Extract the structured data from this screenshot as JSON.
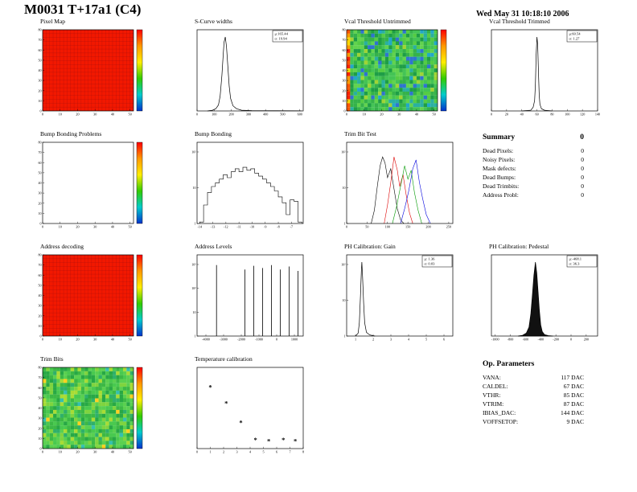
{
  "header": {
    "title": "M0031 T+17a1 (C4)",
    "date": "Wed May 31 10:18:10 2006"
  },
  "summary": {
    "title": "Summary",
    "total": "0",
    "rows": [
      {
        "label": "Dead Pixels:",
        "value": "0"
      },
      {
        "label": "Noisy Pixels:",
        "value": "0"
      },
      {
        "label": "Mask defects:",
        "value": "0"
      },
      {
        "label": "Dead Bumps:",
        "value": "0"
      },
      {
        "label": "Dead Trimbits:",
        "value": "0"
      },
      {
        "label": "Address Probl:",
        "value": "0"
      }
    ]
  },
  "op_parameters": {
    "title": "Op. Parameters",
    "rows": [
      {
        "label": "VANA:",
        "value": "117 DAC"
      },
      {
        "label": "CALDEL:",
        "value": "67 DAC"
      },
      {
        "label": "VTHR:",
        "value": "85 DAC"
      },
      {
        "label": "VTRIM:",
        "value": "87 DAC"
      },
      {
        "label": "IBIAS_DAC:",
        "value": "144 DAC"
      },
      {
        "label": "VOFFSETOP:",
        "value": "9 DAC"
      }
    ]
  },
  "chart_data": [
    {
      "name": "pixel_map",
      "title": "Pixel Map",
      "type": "heatmap",
      "style": "solid",
      "base": "#f21800",
      "grid_color": "#a01010",
      "xlim": [
        0,
        52
      ],
      "xticks": [
        0,
        10,
        20,
        30,
        40,
        50
      ],
      "ylim": [
        0,
        80
      ],
      "yticks": [
        0,
        10,
        20,
        30,
        40,
        50,
        60,
        70,
        80
      ],
      "colorbar": true
    },
    {
      "name": "scurve_widths",
      "title": "S-Curve widths",
      "type": "line",
      "variant": "curve",
      "xlim": [
        0,
        620
      ],
      "xticks": [
        0,
        100,
        200,
        300,
        400,
        500,
        600
      ],
      "stats": {
        "mu": "μ:165.44",
        "sigma": "σ: 19.94"
      },
      "points": [
        [
          60,
          0
        ],
        [
          90,
          0.01
        ],
        [
          110,
          0.03
        ],
        [
          125,
          0.08
        ],
        [
          135,
          0.2
        ],
        [
          145,
          0.48
        ],
        [
          152,
          0.74
        ],
        [
          158,
          0.93
        ],
        [
          165,
          1.0
        ],
        [
          172,
          0.87
        ],
        [
          180,
          0.6
        ],
        [
          188,
          0.33
        ],
        [
          196,
          0.17
        ],
        [
          210,
          0.07
        ],
        [
          230,
          0.03
        ],
        [
          260,
          0.01
        ],
        [
          320,
          0.004
        ],
        [
          610,
          0.002
        ]
      ]
    },
    {
      "name": "vcal_threshold_untrimmed",
      "title": "Vcal Threshold Untrimmed",
      "type": "heatmap",
      "style": "noise",
      "seed": 7,
      "palette": [
        [
          "#35b24a",
          5
        ],
        [
          "#44c455",
          5
        ],
        [
          "#2ab0a0",
          2
        ],
        [
          "#55cc44",
          3
        ],
        [
          "#22a8c8",
          1.5
        ],
        [
          "#2f74d0",
          1
        ],
        [
          "#9fd435",
          1.5
        ],
        [
          "#1e9e46",
          3
        ],
        [
          "#62d34e",
          3
        ]
      ],
      "left_strip": [
        "#ff2200",
        "#ff9900",
        "#ffd500",
        "#ff5500"
      ],
      "xlim": [
        0,
        52
      ],
      "xticks": [
        0,
        10,
        20,
        30,
        40,
        50
      ],
      "ylim": [
        0,
        80
      ],
      "yticks": [
        0,
        10,
        20,
        30,
        40,
        50,
        60,
        70,
        80
      ],
      "colorbar": true
    },
    {
      "name": "vcal_threshold_trimmed",
      "title": "Vcal Threshold Trimmed",
      "type": "line",
      "variant": "curve",
      "xlim": [
        0,
        140
      ],
      "xticks": [
        0,
        20,
        40,
        60,
        80,
        100,
        120,
        140
      ],
      "stats": {
        "mu": "μ:60.54",
        "sigma": "σ: 1.27"
      },
      "points": [
        [
          40,
          0
        ],
        [
          52,
          0.01
        ],
        [
          55,
          0.05
        ],
        [
          57,
          0.14
        ],
        [
          58,
          0.36
        ],
        [
          59,
          0.75
        ],
        [
          60,
          1.0
        ],
        [
          61,
          0.9
        ],
        [
          62,
          0.52
        ],
        [
          63,
          0.22
        ],
        [
          64,
          0.09
        ],
        [
          66,
          0.03
        ],
        [
          70,
          0.01
        ],
        [
          80,
          0
        ]
      ]
    },
    {
      "name": "bump_bonding_problems",
      "title": "Bump Bonding Problems",
      "type": "heatmap",
      "style": "empty",
      "xlim": [
        0,
        52
      ],
      "xticks": [
        0,
        10,
        20,
        30,
        40,
        50
      ],
      "ylim": [
        0,
        80
      ],
      "yticks": [
        0,
        10,
        20,
        30,
        40,
        50,
        60,
        70,
        80
      ],
      "colorbar": true
    },
    {
      "name": "bump_bonding",
      "title": "Bump Bonding",
      "type": "line",
      "variant": "steps",
      "xlim": [
        -14.2,
        -6.1
      ],
      "xticks": [
        -14,
        -13,
        -12,
        -11,
        -10,
        -9,
        -8,
        -7
      ],
      "ylabels": [
        "1",
        "10",
        "10²"
      ],
      "bins": {
        "x0": -14,
        "dx": 0.3,
        "heights": [
          0.02,
          0.25,
          0.42,
          0.5,
          0.55,
          0.6,
          0.66,
          0.62,
          0.7,
          0.74,
          0.7,
          0.76,
          0.72,
          0.74,
          0.68,
          0.64,
          0.6,
          0.55,
          0.5,
          0.44,
          0.36,
          0.28,
          0.12,
          0.32,
          0.3,
          0.02
        ]
      }
    },
    {
      "name": "trim_bit_test",
      "title": "Trim Bit Test",
      "type": "line",
      "variant": "multi",
      "xlim": [
        0,
        260
      ],
      "xticks": [
        0,
        50,
        100,
        150,
        200,
        250
      ],
      "ylabels": [
        "1",
        "10",
        "10²"
      ],
      "series": [
        {
          "color": "#000000",
          "points": [
            [
              60,
              0
            ],
            [
              68,
              0.18
            ],
            [
              75,
              0.5
            ],
            [
              82,
              0.78
            ],
            [
              88,
              0.9
            ],
            [
              94,
              0.82
            ],
            [
              100,
              0.62
            ],
            [
              108,
              0.74
            ],
            [
              115,
              0.5
            ],
            [
              124,
              0.2
            ],
            [
              132,
              0.05
            ],
            [
              140,
              0
            ]
          ]
        },
        {
          "color": "#dd0000",
          "points": [
            [
              92,
              0
            ],
            [
              100,
              0.25
            ],
            [
              108,
              0.55
            ],
            [
              116,
              0.9
            ],
            [
              124,
              0.72
            ],
            [
              130,
              0.5
            ],
            [
              138,
              0.66
            ],
            [
              146,
              0.38
            ],
            [
              154,
              0.14
            ],
            [
              162,
              0
            ]
          ]
        },
        {
          "color": "#009900",
          "points": [
            [
              112,
              0
            ],
            [
              122,
              0.22
            ],
            [
              132,
              0.5
            ],
            [
              142,
              0.78
            ],
            [
              150,
              0.6
            ],
            [
              158,
              0.72
            ],
            [
              166,
              0.42
            ],
            [
              175,
              0.18
            ],
            [
              184,
              0
            ]
          ]
        },
        {
          "color": "#0000dd",
          "points": [
            [
              132,
              0
            ],
            [
              142,
              0.2
            ],
            [
              152,
              0.44
            ],
            [
              162,
              0.74
            ],
            [
              170,
              0.86
            ],
            [
              178,
              0.56
            ],
            [
              186,
              0.34
            ],
            [
              195,
              0.12
            ],
            [
              205,
              0
            ]
          ]
        }
      ]
    },
    {
      "name": "address_decoding",
      "title": "Address decoding",
      "type": "heatmap",
      "style": "solid",
      "base": "#f21800",
      "grid_color": "#a01010",
      "xlim": [
        0,
        52
      ],
      "xticks": [
        0,
        10,
        20,
        30,
        40,
        50
      ],
      "ylim": [
        0,
        80
      ],
      "yticks": [
        0,
        10,
        20,
        30,
        40,
        50,
        60,
        70,
        80
      ],
      "colorbar": true
    },
    {
      "name": "address_levels",
      "title": "Address Levels",
      "type": "line",
      "variant": "spikes",
      "xlim": [
        -4500,
        1500
      ],
      "xticks": [
        -4000,
        -3000,
        -2000,
        -1000,
        0,
        1000
      ],
      "ylabels": [
        "1",
        "10",
        "10²",
        "10³"
      ],
      "spikes": [
        {
          "x": -3400,
          "h": 0.96
        },
        {
          "x": -1800,
          "h": 0.9
        },
        {
          "x": -1300,
          "h": 0.95
        },
        {
          "x": -800,
          "h": 0.92
        },
        {
          "x": -300,
          "h": 0.96
        },
        {
          "x": 200,
          "h": 0.9
        },
        {
          "x": 700,
          "h": 0.94
        },
        {
          "x": 1200,
          "h": 0.88
        }
      ]
    },
    {
      "name": "ph_calibration_gain",
      "title": "PH Calibration: Gain",
      "type": "line",
      "variant": "curve",
      "xlim": [
        0.5,
        6.5
      ],
      "xticks": [
        1,
        2,
        3,
        4,
        5,
        6
      ],
      "ylabels": [
        "1",
        "10",
        "10²"
      ],
      "stats": {
        "mu": "μ: 1.36",
        "sigma": "σ: 0.03"
      },
      "points": [
        [
          1.0,
          0
        ],
        [
          1.15,
          0.04
        ],
        [
          1.22,
          0.18
        ],
        [
          1.28,
          0.55
        ],
        [
          1.33,
          0.88
        ],
        [
          1.36,
          1.0
        ],
        [
          1.4,
          0.8
        ],
        [
          1.46,
          0.45
        ],
        [
          1.52,
          0.18
        ],
        [
          1.62,
          0.05
        ],
        [
          1.8,
          0.015
        ],
        [
          2.1,
          0
        ]
      ]
    },
    {
      "name": "ph_calibration_pedestal",
      "title": "PH Calibration: Pedestal",
      "type": "line",
      "variant": "curve",
      "fill": "#111111",
      "xlim": [
        -1050,
        350
      ],
      "xticks": [
        -1000,
        -800,
        -600,
        -400,
        -200,
        0,
        200
      ],
      "stats": {
        "mu": "μ:-468.1",
        "sigma": "σ: 36.3"
      },
      "points": [
        [
          -700,
          0
        ],
        [
          -640,
          0.01
        ],
        [
          -590,
          0.04
        ],
        [
          -555,
          0.12
        ],
        [
          -530,
          0.3
        ],
        [
          -510,
          0.55
        ],
        [
          -490,
          0.82
        ],
        [
          -470,
          1.0
        ],
        [
          -452,
          0.85
        ],
        [
          -435,
          0.6
        ],
        [
          -418,
          0.35
        ],
        [
          -400,
          0.15
        ],
        [
          -380,
          0.06
        ],
        [
          -350,
          0.02
        ],
        [
          -300,
          0.005
        ],
        [
          -240,
          0
        ]
      ]
    },
    {
      "name": "trim_bits",
      "title": "Trim Bits",
      "type": "heatmap",
      "style": "noise",
      "seed": 13,
      "palette": [
        [
          "#49c94f",
          5
        ],
        [
          "#5ad050",
          4
        ],
        [
          "#3cb845",
          4
        ],
        [
          "#7fd43f",
          2.5
        ],
        [
          "#a8dc35",
          1.5
        ],
        [
          "#2fb06a",
          2
        ],
        [
          "#35c0b0",
          0.6
        ],
        [
          "#ffd020",
          0.3
        ],
        [
          "#28a845",
          3
        ]
      ],
      "xlim": [
        0,
        52
      ],
      "xticks": [
        0,
        10,
        20,
        30,
        40,
        50
      ],
      "ylim": [
        0,
        80
      ],
      "yticks": [
        0,
        10,
        20,
        30,
        40,
        50,
        60,
        70,
        80
      ],
      "colorbar": true
    },
    {
      "name": "temperature_calibration",
      "title": "Temperature calibration",
      "type": "scatter",
      "marker": "*",
      "xlim": [
        0,
        8
      ],
      "xticks": [
        0,
        1,
        2,
        3,
        4,
        5,
        6,
        7,
        8
      ],
      "points": [
        [
          1.0,
          0.83
        ],
        [
          2.2,
          0.61
        ],
        [
          3.3,
          0.35
        ],
        [
          4.4,
          0.12
        ],
        [
          5.4,
          0.1
        ],
        [
          6.5,
          0.12
        ],
        [
          7.4,
          0.1
        ]
      ]
    }
  ]
}
